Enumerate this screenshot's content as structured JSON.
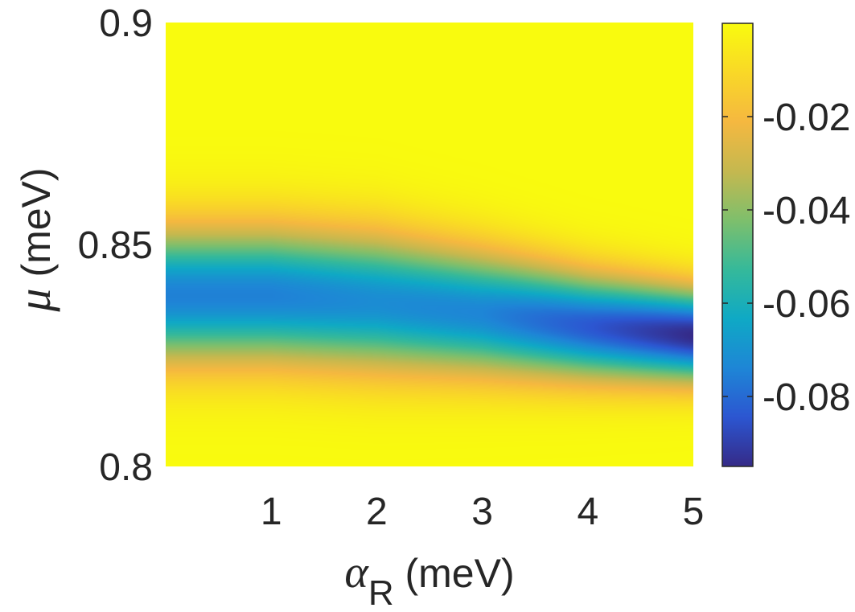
{
  "chart_data": {
    "type": "heatmap",
    "title": "",
    "xlabel": {
      "symbol": "α",
      "subscript": "R",
      "unit": " (meV)"
    },
    "ylabel": {
      "symbol": "μ",
      "unit": " (meV)"
    },
    "xlim": [
      0,
      5
    ],
    "ylim": [
      0.8,
      0.9
    ],
    "x_ticks": [
      1,
      2,
      3,
      4,
      5
    ],
    "x_tick_labels": [
      "1",
      "2",
      "3",
      "4",
      "5"
    ],
    "y_ticks": [
      0.8,
      0.85,
      0.9
    ],
    "y_tick_labels": [
      "0.8",
      "0.85",
      "0.9"
    ],
    "colorbar": {
      "colormap": "parula",
      "range": [
        -0.095,
        0.0
      ],
      "ticks": [
        -0.02,
        -0.04,
        -0.06,
        -0.08
      ],
      "tick_labels": [
        "-0.02",
        "-0.04",
        "-0.06",
        "-0.08"
      ]
    },
    "description_of_field": {
      "ridge_center_mu": [
        [
          0,
          0.8385
        ],
        [
          1,
          0.8385
        ],
        [
          2,
          0.837
        ],
        [
          3,
          0.8345
        ],
        [
          4,
          0.8315
        ],
        [
          5,
          0.8295
        ]
      ],
      "ridge_min_value": [
        [
          0,
          -0.075
        ],
        [
          1,
          -0.075
        ],
        [
          2,
          -0.072
        ],
        [
          3,
          -0.074
        ],
        [
          4,
          -0.084
        ],
        [
          5,
          -0.095
        ]
      ],
      "ridge_width_sigma_mu": [
        [
          0,
          0.0105
        ],
        [
          2,
          0.0105
        ],
        [
          3,
          0.0095
        ],
        [
          4,
          0.0082
        ],
        [
          5,
          0.0072
        ]
      ]
    }
  },
  "colors": {
    "parula_stops": [
      "#352a87",
      "#2c56d1",
      "#1e86d6",
      "#0fa9c5",
      "#35b99a",
      "#7ebf6c",
      "#c5b84f",
      "#f5b840",
      "#f9d827",
      "#f9fb0e"
    ],
    "axis_text": "#262626"
  }
}
